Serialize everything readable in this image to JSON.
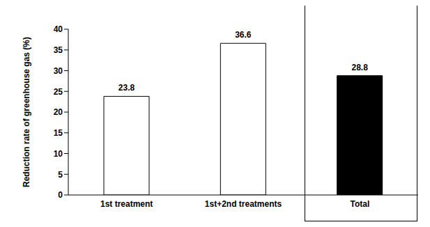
{
  "chart_data": {
    "type": "bar",
    "y_label": "Reduction rate of greenhouse gas (%)",
    "categories": [
      "1st treatment",
      "1st+2nd treatments",
      "Total"
    ],
    "values": [
      23.8,
      36.6,
      28.8
    ],
    "colors": [
      "#ffffff",
      "#ffffff",
      "#000000"
    ],
    "ylim": [
      0,
      40
    ],
    "yticks": [
      0,
      5,
      10,
      15,
      20,
      25,
      30,
      35,
      40
    ],
    "grid": false,
    "data_labels": true
  }
}
